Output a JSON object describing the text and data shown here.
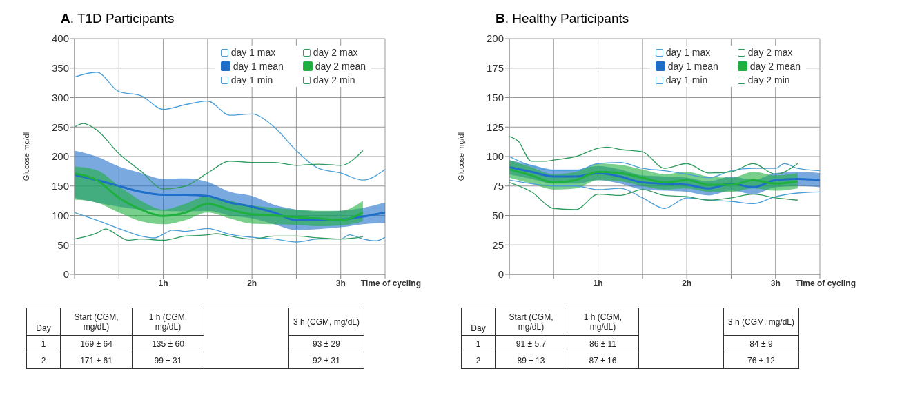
{
  "chart_data": [
    {
      "type": "line",
      "title": "A. T1D Participants",
      "ylabel": "Glucose mg/dl",
      "xlabel": "Time of cycling",
      "xlim": [
        0,
        3.5
      ],
      "xticks": [
        {
          "value": 0,
          "label": null
        },
        {
          "value": 0.5,
          "label": null
        },
        {
          "value": 1,
          "label": "1h"
        },
        {
          "value": 1.5,
          "label": null
        },
        {
          "value": 2,
          "label": "2h"
        },
        {
          "value": 2.5,
          "label": null
        },
        {
          "value": 3,
          "label": "3h"
        },
        {
          "value": 3.5,
          "label": null
        }
      ],
      "ylim": [
        0,
        400
      ],
      "yticks": [
        0,
        50,
        100,
        150,
        200,
        250,
        300,
        350,
        400
      ],
      "grid": true,
      "legend": "top right",
      "annotations": [
        "Day",
        "Start (CGM, mg/dL)",
        "1 h (CGM, mg/dL)",
        "3 h (CGM, mg/dL)",
        "1",
        "169 ± 64",
        "135 ± 60",
        "93 ± 29",
        "2",
        "171 ± 61",
        "99 ± 31",
        "92 ± 31"
      ],
      "series": [
        {
          "name": "day 1 max",
          "color": "#4a9fd8",
          "x": [
            0,
            0.25,
            0.5,
            0.75,
            1,
            1.25,
            1.5,
            1.75,
            2,
            2.25,
            2.5,
            2.75,
            3,
            3.25,
            3.5
          ],
          "values": [
            335,
            343,
            310,
            303,
            280,
            288,
            294,
            270,
            272,
            250,
            210,
            180,
            172,
            160,
            178
          ]
        },
        {
          "name": "day 2 max",
          "color": "#2e9a5e",
          "x": [
            0,
            0.1,
            0.25,
            0.5,
            0.75,
            1,
            1.25,
            1.5,
            1.75,
            2,
            2.25,
            2.5,
            2.75,
            3,
            3.25
          ],
          "values": [
            250,
            256,
            245,
            205,
            175,
            145,
            150,
            172,
            192,
            190,
            190,
            185,
            187,
            185,
            210
          ]
        },
        {
          "name": "day 1 mean",
          "color": "#1f6fc8",
          "x": [
            0,
            0.25,
            0.5,
            0.75,
            1,
            1.25,
            1.5,
            1.75,
            2,
            2.25,
            2.5,
            2.75,
            3,
            3.25,
            3.5
          ],
          "values": [
            169,
            160,
            150,
            140,
            135,
            135,
            133,
            122,
            115,
            105,
            92,
            92,
            93,
            98,
            105
          ],
          "lower": [
            130,
            122,
            115,
            110,
            108,
            107,
            108,
            100,
            95,
            85,
            75,
            77,
            80,
            85,
            87
          ],
          "upper": [
            210,
            200,
            183,
            172,
            162,
            163,
            157,
            140,
            133,
            118,
            110,
            107,
            108,
            113,
            122
          ]
        },
        {
          "name": "day 2 mean",
          "color": "#20b040",
          "x": [
            0,
            0.25,
            0.5,
            0.75,
            1,
            1.25,
            1.5,
            1.75,
            2,
            2.25,
            2.5,
            2.75,
            3,
            3.25
          ],
          "values": [
            171,
            160,
            130,
            110,
            99,
            105,
            120,
            110,
            102,
            100,
            97,
            95,
            92,
            105
          ],
          "lower": [
            127,
            122,
            105,
            90,
            85,
            92,
            105,
            95,
            86,
            85,
            84,
            82,
            83,
            90
          ],
          "upper": [
            183,
            177,
            150,
            125,
            110,
            120,
            133,
            125,
            117,
            113,
            110,
            108,
            108,
            125
          ]
        },
        {
          "name": "day 1 min",
          "color": "#4a9fd8",
          "x": [
            0,
            0.25,
            0.5,
            0.75,
            0.9,
            1,
            1.1,
            1.25,
            1.5,
            1.75,
            2,
            2.25,
            2.5,
            2.75,
            3,
            3.1,
            3.25,
            3.4,
            3.5
          ],
          "values": [
            105,
            92,
            78,
            65,
            62,
            68,
            75,
            73,
            78,
            68,
            63,
            60,
            55,
            60,
            60,
            67,
            60,
            57,
            63
          ]
        },
        {
          "name": "day 2 min",
          "color": "#2e9a5e",
          "x": [
            0,
            0.25,
            0.35,
            0.5,
            0.6,
            0.75,
            1,
            1.25,
            1.5,
            1.6,
            1.75,
            2,
            2.25,
            2.5,
            2.75,
            3,
            3.25
          ],
          "values": [
            60,
            70,
            77,
            65,
            58,
            60,
            58,
            65,
            67,
            69,
            65,
            60,
            65,
            65,
            62,
            60,
            64
          ]
        }
      ]
    },
    {
      "type": "line",
      "title": "B. Healthy Participants",
      "ylabel": "Glucose mg/dl",
      "xlabel": "Time of cycling",
      "xlim": [
        0,
        3.5
      ],
      "xticks": [
        {
          "value": 0,
          "label": null
        },
        {
          "value": 0.5,
          "label": null
        },
        {
          "value": 1,
          "label": "1h"
        },
        {
          "value": 1.5,
          "label": null
        },
        {
          "value": 2,
          "label": "2h"
        },
        {
          "value": 2.5,
          "label": null
        },
        {
          "value": 3,
          "label": "3h"
        },
        {
          "value": 3.5,
          "label": null
        }
      ],
      "ylim": [
        0,
        200
      ],
      "yticks": [
        0,
        25,
        50,
        75,
        100,
        125,
        150,
        175,
        200
      ],
      "grid": true,
      "legend": "top right",
      "annotations": [
        "Day",
        "Start (CGM, mg/dL)",
        "1 h (CGM, mg/dL)",
        "3 h (CGM, mg/dL)",
        "1",
        "91 ± 5.7",
        "86 ± 11",
        "84 ± 9",
        "2",
        "89 ± 13",
        "87 ± 16",
        "76 ± 12"
      ],
      "series": [
        {
          "name": "day 1 max",
          "color": "#4a9fd8",
          "x": [
            0,
            0.25,
            0.5,
            0.75,
            1,
            1.25,
            1.5,
            1.75,
            2,
            2.25,
            2.5,
            2.75,
            3,
            3.1,
            3.25,
            3.5
          ],
          "values": [
            100,
            92,
            88,
            88,
            94,
            95,
            90,
            88,
            85,
            82,
            88,
            90,
            90,
            94,
            90,
            88
          ]
        },
        {
          "name": "day 2 max",
          "color": "#2e9a5e",
          "x": [
            0,
            0.1,
            0.25,
            0.4,
            0.5,
            0.75,
            1,
            1.1,
            1.25,
            1.5,
            1.75,
            2,
            2.25,
            2.5,
            2.75,
            3,
            3.25
          ],
          "values": [
            117,
            113,
            96,
            96,
            97,
            100,
            107,
            108,
            106,
            104,
            90,
            94,
            86,
            87,
            94,
            85,
            94
          ]
        },
        {
          "name": "day 1 mean",
          "color": "#1f6fc8",
          "x": [
            0,
            0.25,
            0.5,
            0.75,
            1,
            1.25,
            1.5,
            1.75,
            2,
            2.25,
            2.5,
            2.75,
            3,
            3.25,
            3.5
          ],
          "values": [
            91,
            87,
            83,
            83,
            86,
            83,
            78,
            77,
            76,
            73,
            77,
            74,
            80,
            81,
            80
          ],
          "lower": [
            85,
            81,
            77,
            77,
            80,
            77,
            72,
            71,
            70,
            67,
            71,
            68,
            74,
            75,
            74
          ],
          "upper": [
            97,
            93,
            89,
            89,
            92,
            89,
            84,
            83,
            82,
            79,
            83,
            80,
            86,
            87,
            86
          ]
        },
        {
          "name": "day 2 mean",
          "color": "#20b040",
          "x": [
            0,
            0.25,
            0.5,
            0.75,
            1,
            1.25,
            1.5,
            1.75,
            2,
            2.25,
            2.5,
            2.75,
            3,
            3.25
          ],
          "values": [
            89,
            84,
            78,
            80,
            87,
            86,
            82,
            78,
            80,
            76,
            76,
            80,
            77,
            79
          ],
          "lower": [
            82,
            77,
            72,
            73,
            80,
            79,
            75,
            72,
            73,
            70,
            70,
            73,
            71,
            73
          ],
          "upper": [
            97,
            91,
            85,
            87,
            94,
            93,
            89,
            85,
            87,
            83,
            82,
            87,
            84,
            86
          ]
        },
        {
          "name": "day 1 min",
          "color": "#4a9fd8",
          "x": [
            0,
            0.25,
            0.5,
            0.75,
            1,
            1.25,
            1.5,
            1.75,
            2,
            2.25,
            2.5,
            2.75,
            3,
            3.25,
            3.5
          ],
          "values": [
            80,
            77,
            75,
            75,
            72,
            73,
            65,
            56,
            65,
            63,
            62,
            60,
            66,
            69,
            70
          ]
        },
        {
          "name": "day 2 min",
          "color": "#2e9a5e",
          "x": [
            0,
            0.25,
            0.5,
            0.75,
            1,
            1.25,
            1.5,
            1.75,
            2,
            2.25,
            2.5,
            2.75,
            3,
            3.25
          ],
          "values": [
            78,
            70,
            56,
            55,
            68,
            67,
            72,
            67,
            66,
            63,
            65,
            68,
            65,
            63
          ]
        }
      ]
    }
  ]
}
